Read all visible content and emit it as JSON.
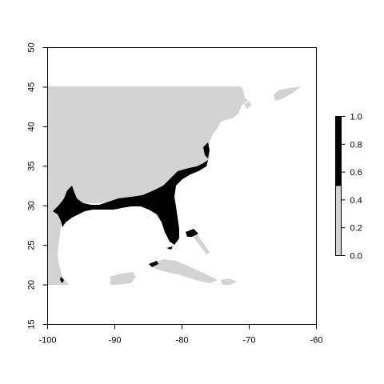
{
  "map": {
    "x_ticks": [
      "-100",
      "-90",
      "-80",
      "-70",
      "-60"
    ],
    "y_ticks": [
      "15",
      "20",
      "25",
      "30",
      "35",
      "40",
      "45",
      "50"
    ],
    "xlim": [
      -100,
      -60
    ],
    "ylim": [
      15,
      50
    ],
    "legend": {
      "ticks": [
        "0.0",
        "0.2",
        "0.4",
        "0.6",
        "0.8",
        "1.0"
      ],
      "range": [
        0,
        1
      ],
      "colors": [
        {
          "from": 0.0,
          "to": 0.5,
          "color": "#d3d3d3"
        },
        {
          "from": 0.5,
          "to": 1.0,
          "color": "#000000"
        }
      ],
      "placement": "right"
    },
    "colors": {
      "low_suitability": "#d3d3d3",
      "high_suitability": "#000000",
      "background": "#ffffff"
    }
  }
}
